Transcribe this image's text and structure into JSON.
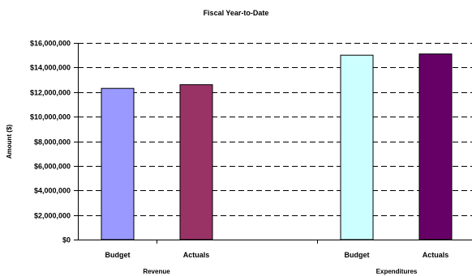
{
  "chart_data": {
    "type": "bar",
    "title": "Fiscal Year-to-Date",
    "ylabel": "Amount ($)",
    "xlabel": "",
    "ylim": [
      0,
      16000000
    ],
    "ytick_values": [
      0,
      2000000,
      4000000,
      6000000,
      8000000,
      10000000,
      12000000,
      14000000,
      16000000
    ],
    "ytick_labels": [
      "$0",
      "$2,000,000",
      "$4,000,000",
      "$6,000,000",
      "$8,000,000",
      "$10,000,000",
      "$12,000,000",
      "$14,000,000",
      "$16,000,000"
    ],
    "grid": "horizontal dashed",
    "legend": "none",
    "groups": [
      {
        "label": "Revenue",
        "bars": [
          {
            "label": "Budget",
            "value": 12300000,
            "color": "#9999ff"
          },
          {
            "label": "Actuals",
            "value": 12600000,
            "color": "#993366"
          }
        ]
      },
      {
        "label": "Expenditures",
        "bars": [
          {
            "label": "Budget",
            "value": 15000000,
            "color": "#ccffff"
          },
          {
            "label": "Actuals",
            "value": 15100000,
            "color": "#660066"
          }
        ]
      }
    ]
  }
}
